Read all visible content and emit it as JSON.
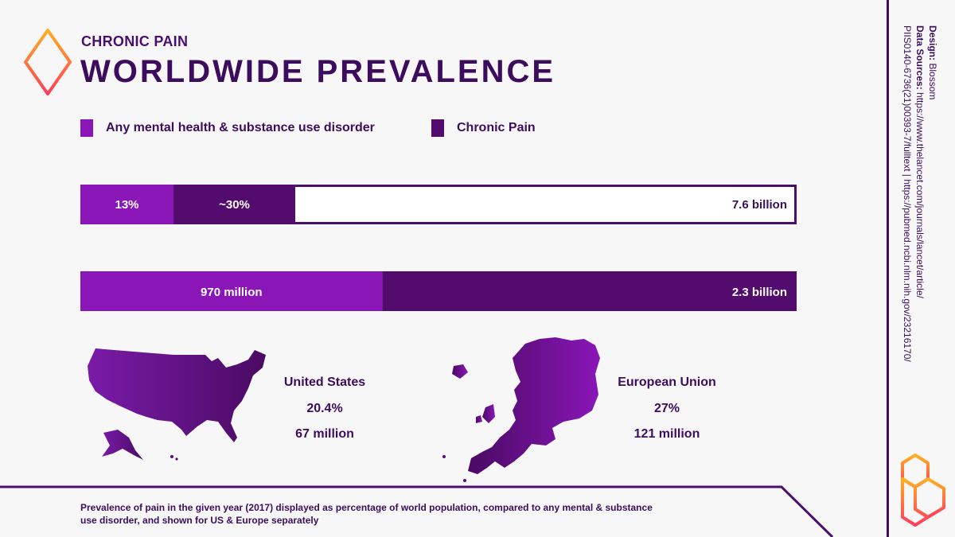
{
  "header": {
    "subtitle": "CHRONIC PAIN",
    "title": "WORLDWIDE PREVALENCE"
  },
  "legend": [
    {
      "label": "Any mental health & substance use disorder",
      "color": "#8a16b8"
    },
    {
      "label": "Chronic Pain",
      "color": "#540b6e"
    }
  ],
  "chart_data": {
    "type": "bar",
    "orientation": "horizontal-stacked",
    "bars": [
      {
        "segments": [
          {
            "series": "Any mental health & substance use disorder",
            "value": 13,
            "label": "13%"
          },
          {
            "series": "Chronic Pain",
            "value": 17,
            "label": "~30%"
          }
        ],
        "total_label": "7.6 billion",
        "scale_max": 100
      },
      {
        "segments": [
          {
            "series": "Any mental health & substance use disorder",
            "value": 970,
            "label": "970 million"
          },
          {
            "series": "Chronic Pain",
            "value": 1330,
            "label": "2.3 billion"
          }
        ],
        "scale_max": 2300
      }
    ]
  },
  "regions": [
    {
      "name": "United States",
      "percent": "20.4%",
      "count": "67 million"
    },
    {
      "name": "European Union",
      "percent": "27%",
      "count": "121 million"
    }
  ],
  "caption": "Prevalence of pain in the given year (2017) displayed as percentage of world population, compared to any mental & substance use disorder, and shown for US & Europe separately",
  "credits": {
    "design_label": "Design:",
    "design_value": "Blossom",
    "sources_label": "Data Sources:",
    "sources_line1": "https://www.thelancet.com/journals/lancet/article/",
    "sources_line2": "PIIS0140-6736(21)00393-7/fulltext | https://pubmed.ncbi.nlm.nih.gov/23216170/"
  },
  "colors": {
    "accent_light": "#8a16b8",
    "accent_dark": "#540b6e",
    "text": "#3b0d5c"
  }
}
